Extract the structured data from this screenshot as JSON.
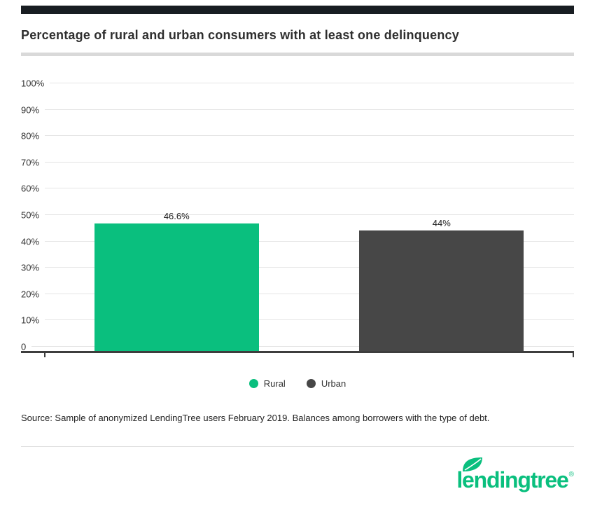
{
  "title": "Percentage of rural and urban consumers with at least one delinquency",
  "chart_data": {
    "type": "bar",
    "categories": [
      "Rural",
      "Urban"
    ],
    "values": [
      46.6,
      44
    ],
    "value_labels": [
      "46.6%",
      "44%"
    ],
    "series_colors": [
      "#0abf7e",
      "#474747"
    ],
    "title": "Percentage of rural and urban consumers with at least one delinquency",
    "xlabel": "",
    "ylabel": "",
    "ylim": [
      0,
      100
    ],
    "ytick_labels": [
      "100%",
      "90%",
      "80%",
      "70%",
      "60%",
      "50%",
      "40%",
      "30%",
      "20%",
      "10%",
      "0"
    ],
    "grid": true,
    "legend_position": "bottom"
  },
  "legend": {
    "items": [
      {
        "label": "Rural",
        "color": "#0abf7e"
      },
      {
        "label": "Urban",
        "color": "#474747"
      }
    ]
  },
  "source": "Source: Sample of anonymized LendingTree users February 2019. Balances among borrowers with the type of debt.",
  "logo": {
    "text": "lendingtree",
    "registered": "®",
    "color": "#0abf7e"
  },
  "theme": {
    "topbar_color": "#181d22",
    "divider_color": "#d9d9d9",
    "grid_color": "#e4e4e4",
    "axis_color": "#3d3d3d"
  }
}
